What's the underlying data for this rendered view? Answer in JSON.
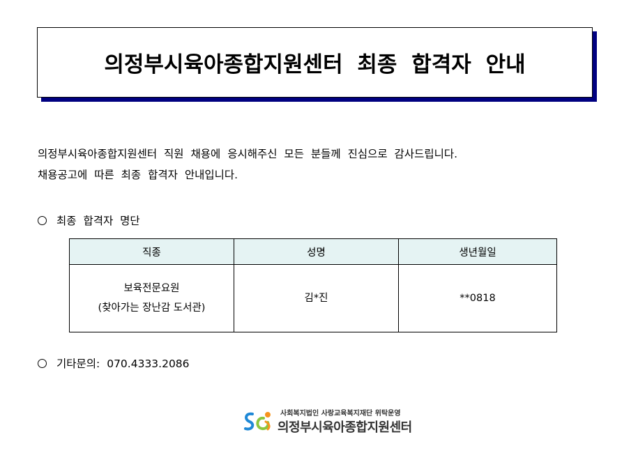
{
  "header": {
    "title": "의정부시육아종합지원센터 최종 합격자 안내"
  },
  "intro": {
    "line1": "의정부시육아종합지원센터 직원 채용에 응시해주신 모든 분들께 진심으로 감사드립니다.",
    "line2": "채용공고에 따른 최종 합격자 안내입니다."
  },
  "section_list": {
    "label": "최종 합격자 명단"
  },
  "table": {
    "headers": [
      "직종",
      "성명",
      "생년월일"
    ],
    "rows": [
      {
        "job_line1": "보육전문요원",
        "job_line2": "(찾아가는 장난감 도서관)",
        "name": "김*진",
        "birth": "**0818"
      }
    ]
  },
  "section_contact": {
    "label": "기타문의:",
    "phone": "070.4333.2086"
  },
  "logo": {
    "subtitle": "사회복지법인 사랑교육복지재단 위탁운영",
    "name": "의정부시육아종합지원센터"
  },
  "colors": {
    "shadow": "#000080",
    "table_header_bg": "#e5f3f3"
  }
}
